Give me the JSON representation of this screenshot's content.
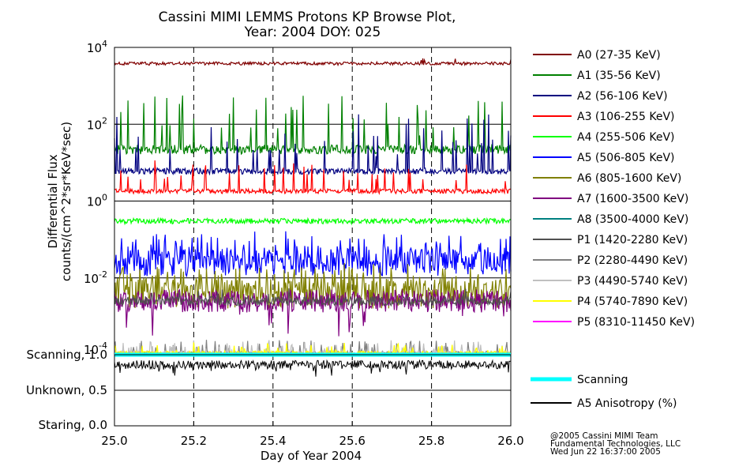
{
  "chart_data": {
    "type": "line",
    "title_line1": "Cassini MIMI LEMMS Protons KP Browse Plot,",
    "title_line2": "Year: 2004 DOY: 025",
    "xlabel": "Day of Year 2004",
    "ylabel_line1": "Differential Flux",
    "ylabel_line2": "counts/(cm^2*sr*KeV*sec)",
    "xlim": [
      25.0,
      26.0
    ],
    "xticks": [
      25.0,
      25.2,
      25.4,
      25.6,
      25.8,
      26.0
    ],
    "xtick_labels": [
      "25.0",
      "25.2",
      "25.4",
      "25.6",
      "25.8",
      "26.0"
    ],
    "yscale": "log",
    "ylim": [
      0.0001,
      10000
    ],
    "ytick_labels": [
      {
        "base": "10",
        "exp": "4",
        "value": 10000
      },
      {
        "base": "10",
        "exp": "2",
        "value": 100
      },
      {
        "base": "10",
        "exp": "0",
        "value": 1
      },
      {
        "base": "10",
        "exp": "-2",
        "value": 0.01
      },
      {
        "base": "10",
        "exp": "-4",
        "value": 0.0001
      }
    ],
    "series": [
      {
        "name": "A0 (27-35 KeV)",
        "color": "#800000",
        "baseline": 3800,
        "noise": 0.04,
        "spike_rate": 0.02,
        "spike_factor": 1.4
      },
      {
        "name": "A1 (35-56 KeV)",
        "color": "#008000",
        "baseline": 22,
        "noise": 0.12,
        "spike_rate": 0.09,
        "spike_factor": 25
      },
      {
        "name": "A2 (56-106 KeV)",
        "color": "#000080",
        "baseline": 6,
        "noise": 0.08,
        "spike_rate": 0.08,
        "spike_factor": 30
      },
      {
        "name": "A3 (106-255 KeV)",
        "color": "#ff0000",
        "baseline": 1.8,
        "noise": 0.06,
        "spike_rate": 0.06,
        "spike_factor": 6
      },
      {
        "name": "A4 (255-506 KeV)",
        "color": "#00ff00",
        "baseline": 0.3,
        "noise": 0.07,
        "spike_rate": 0.0,
        "spike_factor": 1
      },
      {
        "name": "A5 (506-805 KeV)",
        "color": "#0000ff",
        "baseline": 0.025,
        "noise": 0.35,
        "spike_rate": 0.3,
        "spike_factor": 3
      },
      {
        "name": "A6 (805-1600 KeV)",
        "color": "#808000",
        "baseline": 0.004,
        "noise": 0.4,
        "spike_rate": 0.3,
        "spike_factor": 3
      },
      {
        "name": "A7 (1600-3500 KeV)",
        "color": "#800080",
        "baseline": 0.0025,
        "noise": 0.3,
        "spike_rate": 0.05,
        "spike_factor": 0.2
      },
      {
        "name": "A8 (3500-4000 KeV)",
        "color": "#008080",
        "baseline": null
      },
      {
        "name": "P1 (1420-2280 KeV)",
        "color": "#505050",
        "baseline": 0.0025,
        "noise": 0.12,
        "spike_rate": 0.04,
        "spike_factor": 1.8
      },
      {
        "name": "P2 (2280-4490 KeV)",
        "color": "#808080",
        "baseline": 0.00011,
        "noise": 0.05,
        "spike_rate": 0.12,
        "spike_factor": 2.2
      },
      {
        "name": "P3 (4490-5740 KeV)",
        "color": "#c0c0c0",
        "baseline": 0.00011,
        "noise": 0.05,
        "spike_rate": 0.1,
        "spike_factor": 2.0
      },
      {
        "name": "P4 (5740-7890 KeV)",
        "color": "#ffff00",
        "baseline": 0.00011,
        "noise": 0.05,
        "spike_rate": 0.08,
        "spike_factor": 1.8
      },
      {
        "name": "P5 (8310-11450 KeV)",
        "color": "#ff00ff",
        "baseline": null
      }
    ],
    "lower_panel": {
      "y_labels": [
        {
          "text": "Scanning, 1.0",
          "value": 1.0
        },
        {
          "text": "Unknown, 0.5",
          "value": 0.5
        },
        {
          "text": "Staring, 0.0",
          "value": 0.0
        }
      ],
      "ylim": [
        0.0,
        1.0
      ],
      "series": [
        {
          "name": "Scanning",
          "color": "#00ffff",
          "value": 1.0
        },
        {
          "name": "A5 Anisotropy (%)",
          "color": "#000000",
          "baseline": 0.86,
          "noise": 0.06
        }
      ]
    },
    "credits": [
      "@2005 Cassini MIMI Team",
      "Fundamental Technologies, LLC",
      "Wed Jun 22 16:37:00 2005"
    ]
  }
}
